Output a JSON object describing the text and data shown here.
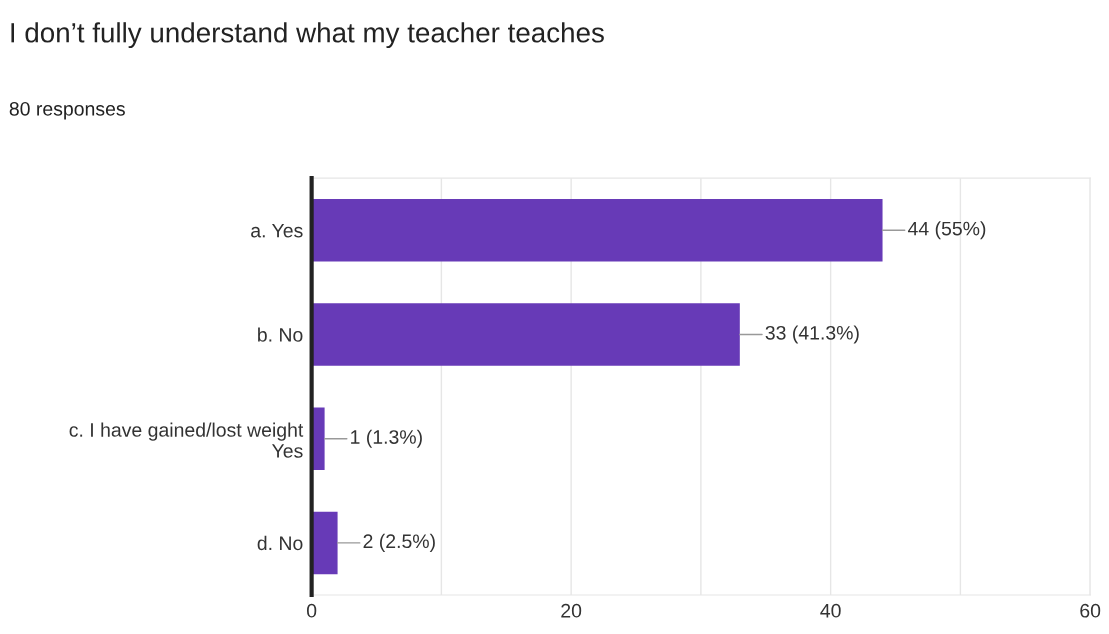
{
  "chart_data": {
    "type": "bar",
    "orientation": "horizontal",
    "title": "I don’t fully understand what my teacher teaches",
    "subtitle": "80 responses",
    "categories": [
      "a. Yes",
      "b. No",
      "c. I have gained/lost weight\nYes",
      "d. No"
    ],
    "values": [
      44,
      33,
      1,
      2
    ],
    "value_labels": [
      "44 (55%)",
      "33 (41.3%)",
      "1 (1.3%)",
      "2 (2.5%)"
    ],
    "color": "#673ab7",
    "xlim": [
      0,
      60
    ],
    "xticks": [
      0,
      {
        "value": 10,
        "label": null
      },
      20,
      {
        "value": 30,
        "label": null
      },
      40,
      {
        "value": 50,
        "label": null
      },
      60
    ],
    "grid": "x",
    "legend": false
  }
}
